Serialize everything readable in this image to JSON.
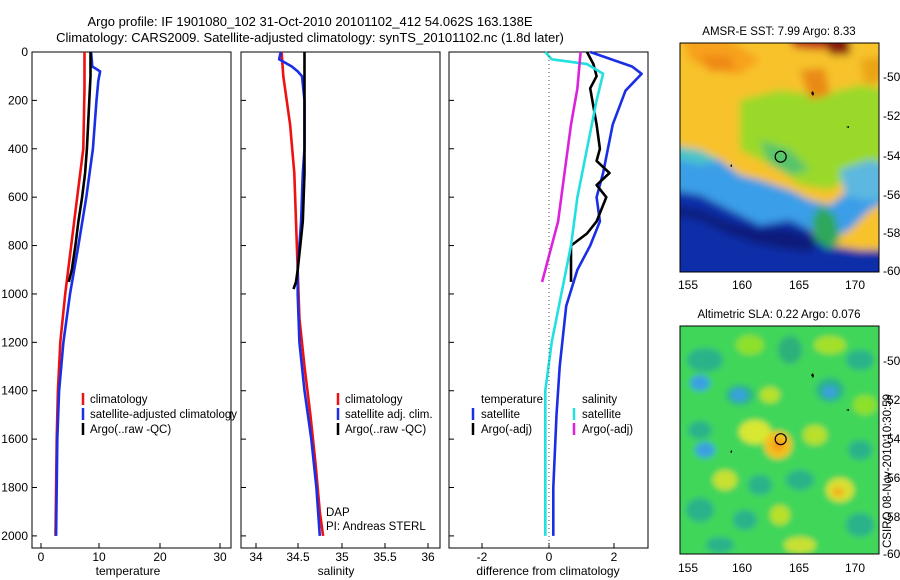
{
  "header": {
    "line1": "Argo profile: IF 1901080_102 31-Oct-2010 20101102_412 54.062S 163.138E",
    "line2": "Climatology: CARS2009. Satellite-adjusted climatology: synTS_20101102.nc (1.8d later)"
  },
  "footer_note": {
    "dap": "DAP",
    "pi": "PI: Andreas STERL"
  },
  "credit": "CSIRO 08-Nov-2010 10:30:59",
  "colors": {
    "climatology": "#ee1111",
    "satellite": "#1a2ee6",
    "argo": "#000000",
    "sal_satellite": "#22e0e0",
    "sal_argo": "#dd22dd"
  },
  "depth_axis": {
    "ylim": [
      0,
      2050
    ],
    "ticks": [
      "0",
      "200",
      "400",
      "600",
      "800",
      "1000",
      "1200",
      "1400",
      "1600",
      "1800",
      "2000"
    ]
  },
  "chart_data": [
    {
      "type": "line",
      "name": "temperature-profile",
      "xlabel": "temperature",
      "xlim": [
        -1.5,
        31.5
      ],
      "xticks": [
        "0",
        "10",
        "20",
        "30"
      ],
      "legend": [
        "climatology",
        "satellite-adjusted climatology",
        "Argo(..raw -QC)"
      ],
      "series": [
        {
          "name": "climatology",
          "color": "climatology",
          "points": [
            [
              7.2,
              0
            ],
            [
              7.2,
              150
            ],
            [
              7.0,
              400
            ],
            [
              6.0,
              600
            ],
            [
              5.0,
              800
            ],
            [
              4.0,
              1000
            ],
            [
              3.2,
              1200
            ],
            [
              2.8,
              1400
            ],
            [
              2.6,
              1600
            ],
            [
              2.5,
              1800
            ],
            [
              2.4,
              2000
            ]
          ]
        },
        {
          "name": "satellite-adjusted climatology",
          "color": "satellite",
          "points": [
            [
              8.3,
              0
            ],
            [
              8.5,
              60
            ],
            [
              9.8,
              80
            ],
            [
              9.5,
              120
            ],
            [
              9.2,
              200
            ],
            [
              8.6,
              400
            ],
            [
              7.5,
              600
            ],
            [
              6.2,
              800
            ],
            [
              4.8,
              1000
            ],
            [
              3.7,
              1200
            ],
            [
              3.0,
              1400
            ],
            [
              2.7,
              1600
            ],
            [
              2.6,
              1800
            ],
            [
              2.5,
              2000
            ]
          ]
        },
        {
          "name": "Argo(..raw -QC)",
          "color": "argo",
          "points": [
            [
              8.2,
              0
            ],
            [
              8.2,
              100
            ],
            [
              8.0,
              200
            ],
            [
              7.8,
              300
            ],
            [
              7.6,
              400
            ],
            [
              7.3,
              500
            ],
            [
              6.8,
              600
            ],
            [
              6.2,
              700
            ],
            [
              5.7,
              800
            ],
            [
              5.1,
              900
            ],
            [
              4.6,
              950
            ]
          ]
        }
      ]
    },
    {
      "type": "line",
      "name": "salinity-profile",
      "xlabel": "salinity",
      "xlim": [
        33.75,
        36.1
      ],
      "xticks": [
        "34",
        "34.5",
        "35",
        "35.5",
        "36"
      ],
      "legend": [
        "climatology",
        "satellite adj. clim.",
        "Argo(..raw -QC)"
      ],
      "series": [
        {
          "name": "climatology",
          "color": "climatology",
          "points": [
            [
              34.23,
              0
            ],
            [
              34.25,
              100
            ],
            [
              34.33,
              300
            ],
            [
              34.38,
              500
            ],
            [
              34.4,
              700
            ],
            [
              34.42,
              900
            ],
            [
              34.44,
              1100
            ],
            [
              34.5,
              1300
            ],
            [
              34.57,
              1500
            ],
            [
              34.63,
              1700
            ],
            [
              34.68,
              1900
            ],
            [
              34.72,
              2000
            ]
          ]
        },
        {
          "name": "satellite adj. clim.",
          "color": "satellite",
          "points": [
            [
              34.22,
              0
            ],
            [
              34.2,
              30
            ],
            [
              34.35,
              60
            ],
            [
              34.42,
              80
            ],
            [
              34.47,
              100
            ],
            [
              34.5,
              200
            ],
            [
              34.5,
              400
            ],
            [
              34.48,
              500
            ],
            [
              34.46,
              700
            ],
            [
              34.44,
              800
            ],
            [
              34.42,
              900
            ],
            [
              34.42,
              1000
            ],
            [
              34.44,
              1200
            ],
            [
              34.5,
              1400
            ],
            [
              34.58,
              1600
            ],
            [
              34.64,
              1800
            ],
            [
              34.68,
              2000
            ]
          ]
        },
        {
          "name": "Argo(..raw -QC)",
          "color": "argo",
          "points": [
            [
              34.5,
              0
            ],
            [
              34.5,
              300
            ],
            [
              34.5,
              500
            ],
            [
              34.48,
              700
            ],
            [
              34.45,
              800
            ],
            [
              34.42,
              900
            ],
            [
              34.4,
              950
            ],
            [
              34.37,
              980
            ]
          ]
        }
      ]
    },
    {
      "type": "line",
      "name": "difference-profile",
      "xlabel": "difference from climatology",
      "xlim": [
        -3.1,
        3.1
      ],
      "xticks": [
        "-2",
        "0",
        "2"
      ],
      "legend_temperature": [
        "temperature",
        "satellite",
        "Argo(-adj)"
      ],
      "legend_salinity": [
        "salinity",
        "satellite",
        "Argo(-adj)"
      ],
      "series": [
        {
          "name": "temperature satellite",
          "color": "satellite",
          "points": [
            [
              1.3,
              0
            ],
            [
              2.6,
              60
            ],
            [
              2.9,
              90
            ],
            [
              2.4,
              160
            ],
            [
              2.0,
              300
            ],
            [
              1.7,
              500
            ],
            [
              1.5,
              600
            ],
            [
              1.6,
              700
            ],
            [
              1.3,
              800
            ],
            [
              0.9,
              900
            ],
            [
              0.55,
              1050
            ],
            [
              0.35,
              1300
            ],
            [
              0.25,
              1500
            ],
            [
              0.15,
              1800
            ],
            [
              0.15,
              2000
            ]
          ]
        },
        {
          "name": "temperature Argo(-adj)",
          "color": "argo",
          "points": [
            [
              1.2,
              0
            ],
            [
              1.4,
              50
            ],
            [
              1.5,
              100
            ],
            [
              1.3,
              150
            ],
            [
              1.5,
              300
            ],
            [
              1.6,
              400
            ],
            [
              1.5,
              450
            ],
            [
              1.9,
              500
            ],
            [
              1.5,
              550
            ],
            [
              1.8,
              600
            ],
            [
              1.5,
              700
            ],
            [
              1.2,
              750
            ],
            [
              0.7,
              800
            ],
            [
              0.7,
              950
            ]
          ]
        },
        {
          "name": "salinity satellite",
          "color": "sal_satellite",
          "points": [
            [
              -0.1,
              0
            ],
            [
              0.1,
              30
            ],
            [
              1.2,
              50
            ],
            [
              1.7,
              90
            ],
            [
              1.5,
              200
            ],
            [
              1.2,
              400
            ],
            [
              0.9,
              600
            ],
            [
              0.7,
              800
            ],
            [
              0.4,
              1000
            ],
            [
              0.1,
              1200
            ],
            [
              -0.1,
              1400
            ],
            [
              -0.1,
              1600
            ],
            [
              -0.1,
              2000
            ]
          ]
        },
        {
          "name": "salinity Argo(-adj)",
          "color": "sal_argo",
          "points": [
            [
              1.0,
              0
            ],
            [
              0.9,
              150
            ],
            [
              0.7,
              300
            ],
            [
              0.5,
              500
            ],
            [
              0.3,
              700
            ],
            [
              0.0,
              850
            ],
            [
              -0.2,
              950
            ]
          ]
        }
      ]
    }
  ],
  "maps": [
    {
      "name": "sst-map",
      "title": "AMSR-E SST: 7.99 Argo: 8.33",
      "xlim": [
        154.5,
        171.5
      ],
      "ylim": [
        -60,
        -48.2
      ],
      "xticks": [
        "155",
        "160",
        "165",
        "170"
      ],
      "yticks": [
        "-50",
        "-52",
        "-54",
        "-56",
        "-58",
        "-60"
      ],
      "marker": {
        "lon": 163.1,
        "lat": -54.06
      }
    },
    {
      "name": "sla-map",
      "title": "Altimetric SLA: 0.22 Argo: 0.076",
      "xlim": [
        154.5,
        171.5
      ],
      "ylim": [
        -60,
        -48.2
      ],
      "xticks": [
        "155",
        "160",
        "165",
        "170"
      ],
      "yticks": [
        "-50",
        "-52",
        "-54",
        "-56",
        "-58",
        "-60"
      ],
      "marker": {
        "lon": 163.1,
        "lat": -54.06
      }
    }
  ]
}
